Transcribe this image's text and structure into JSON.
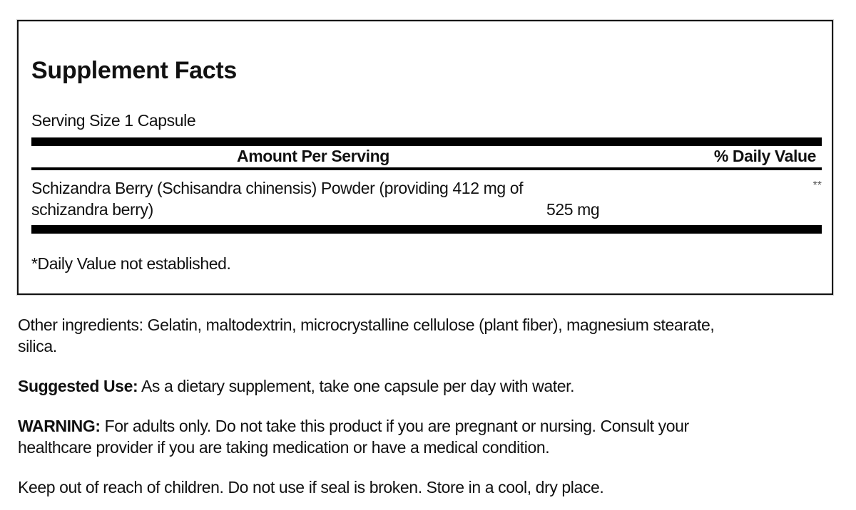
{
  "facts": {
    "title": "Supplement Facts",
    "serving_size": "Serving Size 1 Capsule",
    "header_amount": "Amount Per Serving",
    "header_dv": "% Daily Value",
    "ingredient": {
      "name_line1": "Schizandra Berry (Schisandra chinensis) Powder (providing 412 mg of",
      "name_line2": "schizandra berry)",
      "amount": "525 mg",
      "dv": "**"
    },
    "footnote": "*Daily Value not established."
  },
  "other_ingredients": {
    "line1": "Other ingredients: Gelatin, maltodextrin, microcrystalline cellulose (plant fiber), magnesium stearate,",
    "line2": "silica."
  },
  "suggested_use": {
    "label": "Suggested Use:",
    "text": " As a dietary supplement, take one capsule per day with water."
  },
  "warning": {
    "label": "WARNING:",
    "line1": " For adults only. Do not take this product if you are pregnant or nursing. Consult your",
    "line2": "healthcare provider if you are taking medication or have a medical condition."
  },
  "storage": "Keep out of reach of children. Do not use if seal is broken. Store in a cool, dry place."
}
